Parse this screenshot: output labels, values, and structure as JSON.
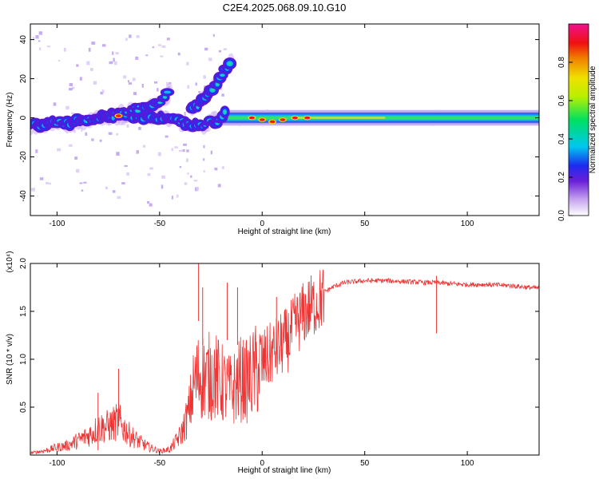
{
  "figure": {
    "title": "C2E4.2025.068.09.10.G10"
  },
  "chart_data": [
    {
      "type": "heatmap",
      "title": "C2E4.2025.068.09.10.G10",
      "xlabel": "Height of straight line (km)",
      "ylabel": "Frequency (Hz)",
      "xlim": [
        -113,
        135
      ],
      "ylim": [
        -50,
        48
      ],
      "xticks": [
        -100,
        -50,
        0,
        50,
        100
      ],
      "yticks": [
        -40,
        -20,
        0,
        20,
        40
      ],
      "grid": false,
      "colorbar": {
        "label": "Normalized spectral amplitude",
        "range": [
          0,
          1
        ],
        "ticks": [
          "0.0",
          "0.2",
          "0.4",
          "0.6",
          "0.8"
        ],
        "tick_values": [
          0.0,
          0.2,
          0.4,
          0.6,
          0.8
        ],
        "colormap": "rainbow (white-violet-blue-cyan-green-yellow-orange-red-magenta)"
      },
      "ridges": [
        {
          "x": [
            -113,
            -100,
            -90,
            -80,
            -70,
            -60,
            -50,
            -40,
            -30,
            -20,
            -18
          ],
          "y": [
            -4,
            -3,
            -2,
            0,
            1,
            1,
            0,
            -2,
            -4,
            -1,
            2
          ]
        },
        {
          "x": [
            -75,
            -65,
            -55,
            -48,
            -45
          ],
          "y": [
            0,
            3,
            6,
            10,
            13
          ]
        },
        {
          "x": [
            -35,
            -30,
            -27,
            -22,
            -18,
            -15
          ],
          "y": [
            4,
            8,
            12,
            18,
            24,
            30
          ]
        },
        {
          "x": [
            -20,
            0,
            20,
            50,
            100,
            135
          ],
          "y": [
            0,
            0,
            0,
            0,
            0,
            0
          ]
        }
      ],
      "hot_spots": [
        {
          "x": -70,
          "y": 1
        },
        {
          "x": -5,
          "y": 0
        },
        {
          "x": 0,
          "y": -1
        },
        {
          "x": 5,
          "y": -2
        },
        {
          "x": 10,
          "y": -1
        },
        {
          "x": 16,
          "y": 0
        },
        {
          "x": 22,
          "y": 0
        }
      ]
    },
    {
      "type": "line",
      "xlabel": "Height of straight line (km)",
      "ylabel": "SNR (10 * v/v)",
      "y_multiplier": "(x10⁴)",
      "xlim": [
        -113,
        135
      ],
      "ylim": [
        0,
        2.0
      ],
      "xticks": [
        -100,
        -50,
        0,
        50,
        100
      ],
      "yticks": [
        "0.5",
        "1.0",
        "1.5",
        "2.0"
      ],
      "ytick_values": [
        0.5,
        1.0,
        1.5,
        2.0
      ],
      "grid": false,
      "series": [
        {
          "color": "#ee3333",
          "x": [
            -113,
            -105,
            -100,
            -95,
            -90,
            -85,
            -80,
            -75,
            -70,
            -65,
            -60,
            -55,
            -50,
            -45,
            -40,
            -36,
            -33,
            -30,
            -27,
            -24,
            -21,
            -18,
            -15,
            -12,
            -10,
            -8,
            -5,
            -2,
            0,
            3,
            5,
            8,
            10,
            13,
            15,
            18,
            20,
            22,
            25,
            28,
            30,
            35,
            40,
            45,
            50,
            60,
            70,
            80,
            85,
            90,
            100,
            110,
            120,
            130,
            135
          ],
          "y": [
            0.02,
            0.05,
            0.08,
            0.1,
            0.15,
            0.2,
            0.28,
            0.3,
            0.35,
            0.22,
            0.14,
            0.08,
            0.04,
            0.06,
            0.2,
            0.45,
            0.8,
            0.9,
            0.85,
            0.9,
            0.82,
            0.75,
            0.7,
            0.8,
            0.85,
            0.8,
            0.88,
            0.95,
            1.0,
            1.05,
            1.1,
            1.15,
            1.2,
            1.25,
            1.35,
            1.45,
            1.5,
            1.55,
            1.6,
            1.65,
            1.7,
            1.76,
            1.8,
            1.81,
            1.82,
            1.82,
            1.81,
            1.8,
            1.8,
            1.79,
            1.78,
            1.78,
            1.77,
            1.75,
            1.74
          ]
        }
      ],
      "peaks": [
        {
          "x": -80,
          "y": 0.65
        },
        {
          "x": -70,
          "y": 0.9
        },
        {
          "x": -31,
          "y": 2.0
        },
        {
          "x": -29,
          "y": 1.75
        },
        {
          "x": -17,
          "y": 1.8
        },
        {
          "x": -12,
          "y": 1.75
        },
        {
          "x": 7,
          "y": 1.65
        },
        {
          "x": 85,
          "y": 1.87
        }
      ]
    }
  ]
}
